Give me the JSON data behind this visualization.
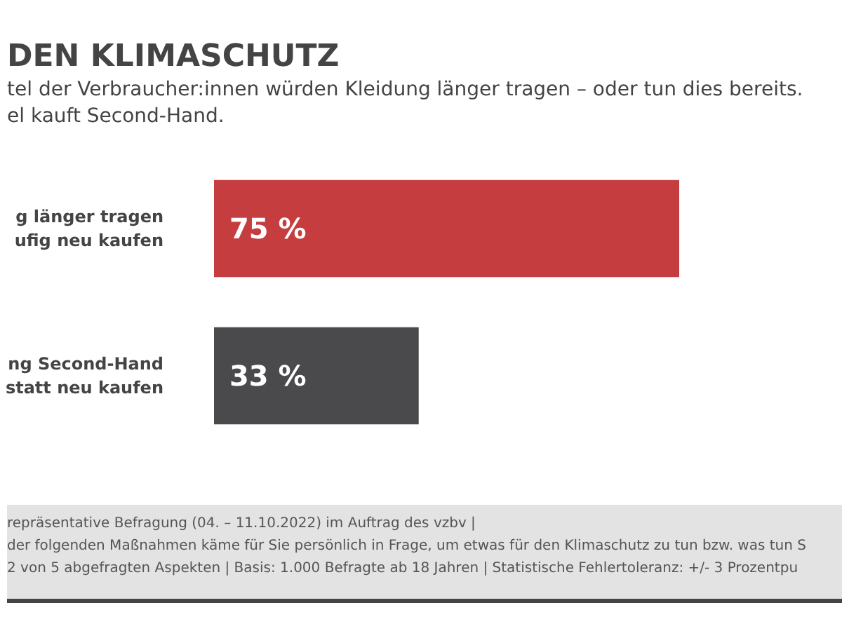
{
  "chart_data": {
    "type": "bar",
    "orientation": "horizontal",
    "title": "DEN KLIMASCHUTZ",
    "subtitle": "tel der Verbraucher:innen würden Kleidung länger tragen – oder tun dies bereits.\nel kauft Second-Hand.",
    "categories": [
      "g länger tragen\nufig neu kaufen",
      "ng Second-Hand\nstatt neu kaufen"
    ],
    "values": [
      75,
      33
    ],
    "colors": [
      "#c53d3f",
      "#4a4a4c"
    ],
    "value_labels": [
      "75 %",
      "33 %"
    ],
    "tick_labels": "y",
    "grid": false,
    "annotations": [
      "repräsentative Befragung (04. – 11.10.2022) im Auftrag des vzbv |",
      "der folgenden Maßnahmen käme für Sie persönlich in Frage, um etwas für den Klimaschutz zu tun bzw. was tun S",
      "2 von 5 abgefragten Aspekten | Basis: 1.000 Befragte ab 18 Jahren | Statistische Fehlertoleranz: +/- 3 Prozentpu"
    ]
  }
}
